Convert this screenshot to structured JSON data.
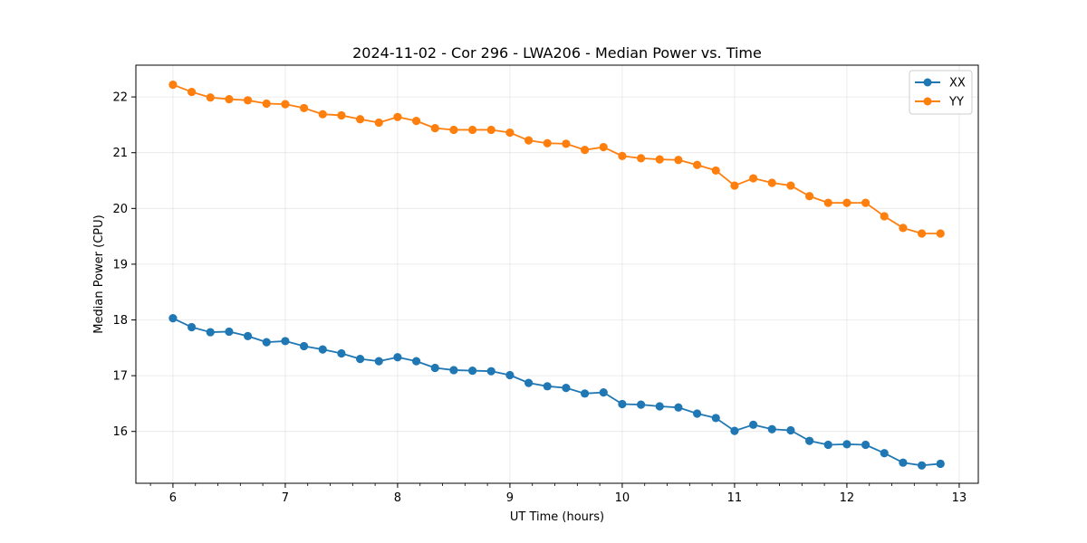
{
  "chart_data": {
    "type": "line",
    "title": "2024-11-02 - Cor 296 - LWA206 - Median Power vs. Time",
    "xlabel": "UT Time (hours)",
    "ylabel": "Median Power (CPU)",
    "xlim": [
      5.67,
      13.17
    ],
    "ylim": [
      15.07,
      22.57
    ],
    "xticks": [
      6,
      7,
      8,
      9,
      10,
      11,
      12,
      13
    ],
    "xticks_minor_step": 0.2,
    "yticks": [
      16,
      17,
      18,
      19,
      20,
      21,
      22
    ],
    "grid": true,
    "legend_position": "top-right",
    "x": [
      6.0,
      6.1667,
      6.3333,
      6.5,
      6.6667,
      6.8333,
      7.0,
      7.1667,
      7.3333,
      7.5,
      7.6667,
      7.8333,
      8.0,
      8.1667,
      8.3333,
      8.5,
      8.6667,
      8.8333,
      9.0,
      9.1667,
      9.3333,
      9.5,
      9.6667,
      9.8333,
      10.0,
      10.1667,
      10.3333,
      10.5,
      10.6667,
      10.8333,
      11.0,
      11.1667,
      11.3333,
      11.5,
      11.6667,
      11.8333,
      12.0,
      12.1667,
      12.3333,
      12.5,
      12.6667,
      12.8333
    ],
    "series": [
      {
        "name": "XX",
        "color": "#1f77b4",
        "values": [
          18.03,
          17.87,
          17.78,
          17.79,
          17.71,
          17.6,
          17.62,
          17.53,
          17.47,
          17.4,
          17.3,
          17.26,
          17.33,
          17.26,
          17.14,
          17.1,
          17.09,
          17.08,
          17.01,
          16.87,
          16.81,
          16.78,
          16.68,
          16.7,
          16.49,
          16.48,
          16.45,
          16.43,
          16.32,
          16.24,
          16.01,
          16.12,
          16.04,
          16.02,
          15.83,
          15.76,
          15.77,
          15.76,
          15.61,
          15.44,
          15.39,
          15.42
        ]
      },
      {
        "name": "YY",
        "color": "#ff7f0e",
        "values": [
          22.22,
          22.09,
          21.99,
          21.96,
          21.94,
          21.88,
          21.87,
          21.8,
          21.69,
          21.67,
          21.6,
          21.54,
          21.64,
          21.57,
          21.44,
          21.41,
          21.41,
          21.41,
          21.36,
          21.22,
          21.17,
          21.16,
          21.05,
          21.1,
          20.94,
          20.9,
          20.88,
          20.87,
          20.78,
          20.68,
          20.41,
          20.54,
          20.46,
          20.41,
          20.22,
          20.1,
          20.1,
          20.1,
          19.86,
          19.65,
          19.55,
          19.55
        ]
      }
    ]
  }
}
